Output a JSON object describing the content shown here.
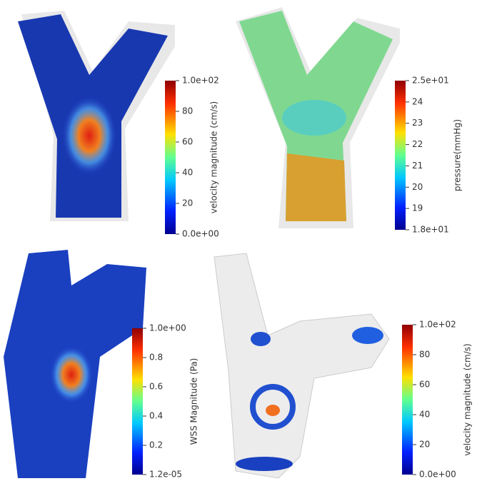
{
  "panels": [
    {
      "colorbar_label": "velocity magnitude (cm/s)",
      "clim": [
        0,
        100
      ],
      "ticks": [
        {
          "value": 0,
          "label": "0.0e+00"
        },
        20,
        40,
        60,
        80,
        {
          "value": 100,
          "label": "1.0e+02"
        }
      ]
    },
    {
      "colorbar_label": "pressure(mmHg)",
      "clim": [
        18,
        25
      ],
      "ticks": [
        {
          "value": 18,
          "label": "1.8e+01"
        },
        19,
        20,
        21,
        22,
        23,
        24,
        {
          "value": 25,
          "label": "2.5e+01"
        }
      ]
    },
    {
      "colorbar_label": "WSS Magnitude  (Pa)",
      "clim": [
        1.2e-05,
        1
      ],
      "ticks": [
        {
          "value": 1.2e-05,
          "label": "1.2e-05"
        },
        0.2,
        0.4,
        0.6,
        0.8,
        {
          "value": 1,
          "label": "1.0e+00"
        }
      ]
    },
    {
      "colorbar_label": "velocity magnitude (cm/s)",
      "clim": [
        0,
        100
      ],
      "ticks": [
        {
          "value": 0,
          "label": "0.0e+00"
        },
        20,
        40,
        60,
        80,
        {
          "value": 100,
          "label": "1.0e+02"
        }
      ]
    }
  ]
}
